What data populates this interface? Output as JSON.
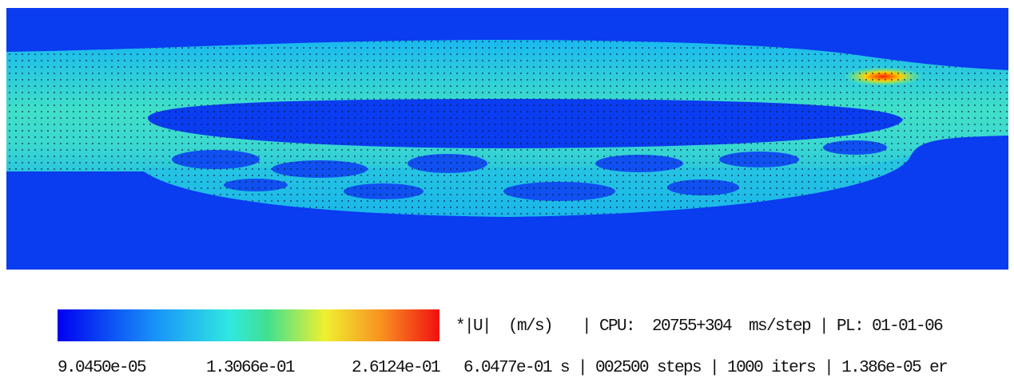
{
  "legend": {
    "min": "9.0450e-05",
    "mid": "1.3066e-01",
    "max": "2.6124e-01"
  },
  "status": {
    "quantity": "*|U|  (m/s)",
    "cpu": "| CPU:  20755+304  ms/step | PL: 01-01-06",
    "run": "6.0477e-01 s | 002500 steps | 1000 iters | 1.386e-05 er"
  }
}
